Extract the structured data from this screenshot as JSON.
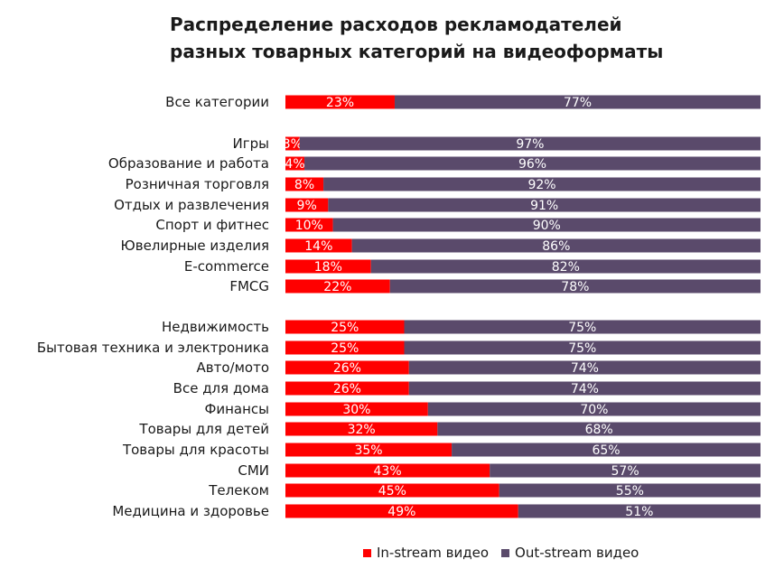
{
  "title_lines": [
    "Распределение расходов рекламодателей",
    "разных товарных категорий на видеоформаты"
  ],
  "colors": {
    "instream": "#ff0000",
    "outstream": "#5a4a6b"
  },
  "chart_data": {
    "type": "bar",
    "orientation": "horizontal",
    "stacked": true,
    "percent": true,
    "title": "Распределение расходов рекламодателей разных товарных категорий на видеоформаты",
    "xlim": [
      0,
      100
    ],
    "legend_position": "bottom",
    "categories": [
      "Все категории",
      "Игры",
      "Образование и работа",
      "Розничная торговля",
      "Отдых и развлечения",
      "Спорт и фитнес",
      "Ювелирные изделия",
      "E-commerce",
      "FMCG",
      "Недвижимость",
      "Бытовая техника и электроника",
      "Авто/мото",
      "Все для дома",
      "Финансы",
      "Товары для детей",
      "Товары для красоты",
      "СМИ",
      "Телеком",
      "Медицина и здоровье"
    ],
    "groups": [
      [
        0
      ],
      [
        1,
        2,
        3,
        4,
        5,
        6,
        7,
        8
      ],
      [
        9,
        10,
        11,
        12,
        13,
        14,
        15,
        16,
        17,
        18
      ]
    ],
    "series": [
      {
        "name": "In-stream видео",
        "values": [
          23,
          3,
          4,
          8,
          9,
          10,
          14,
          18,
          22,
          25,
          25,
          26,
          26,
          30,
          32,
          35,
          43,
          45,
          49
        ]
      },
      {
        "name": "Out-stream видео",
        "values": [
          77,
          97,
          96,
          92,
          91,
          90,
          86,
          82,
          78,
          75,
          75,
          74,
          74,
          70,
          68,
          65,
          57,
          55,
          51
        ]
      }
    ]
  }
}
